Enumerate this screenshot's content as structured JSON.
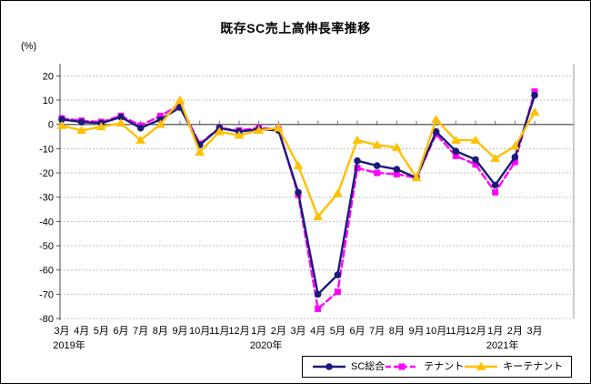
{
  "title": "既存SC売上高伸長率推移",
  "y_axis": {
    "unit_label": "(%)",
    "ticks": [
      20,
      10,
      0,
      -10,
      -20,
      -30,
      -40,
      -50,
      -60,
      -70,
      -80
    ]
  },
  "legend": {
    "items": [
      {
        "label": "SC総合"
      },
      {
        "label": "テナント"
      },
      {
        "label": "キーテナント"
      }
    ]
  },
  "chart_data": {
    "type": "line",
    "title": "既存SC売上高伸長率推移",
    "ylabel": "(%)",
    "ylim": [
      -80,
      20
    ],
    "y_tick_step": 10,
    "grid": true,
    "legend_position": "bottom-right",
    "categories": [
      "3月",
      "4月",
      "5月",
      "6月",
      "7月",
      "8月",
      "9月",
      "10月",
      "11月",
      "12月",
      "1月",
      "2月",
      "3月",
      "4月",
      "5月",
      "6月",
      "7月",
      "8月",
      "9月",
      "10月",
      "11月",
      "12月",
      "1月",
      "2月",
      "3月"
    ],
    "year_labels": [
      {
        "text": "2019年",
        "at_index": 0
      },
      {
        "text": "2020年",
        "at_index": 10
      },
      {
        "text": "2021年",
        "at_index": 22
      }
    ],
    "series": [
      {
        "name": "SC総合",
        "color": "#1b1b78",
        "line_style": "solid",
        "marker": "circle",
        "values": [
          2,
          1,
          0.5,
          3,
          -1.5,
          2,
          7,
          -8.5,
          -1.5,
          -3,
          -2,
          -2.5,
          -28,
          -70,
          -62,
          -15,
          -17,
          -18.5,
          -22,
          -3,
          -11,
          -14.5,
          -25,
          -13.5,
          12
        ]
      },
      {
        "name": "テナント",
        "color": "#ff00ff",
        "line_style": "dashed",
        "marker": "square",
        "values": [
          2.5,
          1.5,
          1,
          3.5,
          -0.5,
          3.5,
          8,
          -8,
          -1.5,
          -2.5,
          -1.5,
          -2,
          -29,
          -76,
          -69,
          -18,
          -20,
          -20.5,
          -22,
          -4,
          -13,
          -16.5,
          -28,
          -15.5,
          13.5
        ]
      },
      {
        "name": "キーテナント",
        "color": "#ffc000",
        "line_style": "solid",
        "marker": "triangle",
        "values": [
          -0.5,
          -2.5,
          -1,
          0.5,
          -6.5,
          0,
          10,
          -11.5,
          -3,
          -4.5,
          -2.5,
          -1.5,
          -17,
          -38,
          -28.5,
          -6.5,
          -8.5,
          -9.5,
          -22,
          2,
          -6.5,
          -6.5,
          -14,
          -9,
          5
        ]
      }
    ],
    "style": {
      "grid_color": "#bfbfbf",
      "zero_line_color": "#6e6e6e",
      "axis_color": "#4d4d4d",
      "right_border_color": "#999999"
    }
  }
}
